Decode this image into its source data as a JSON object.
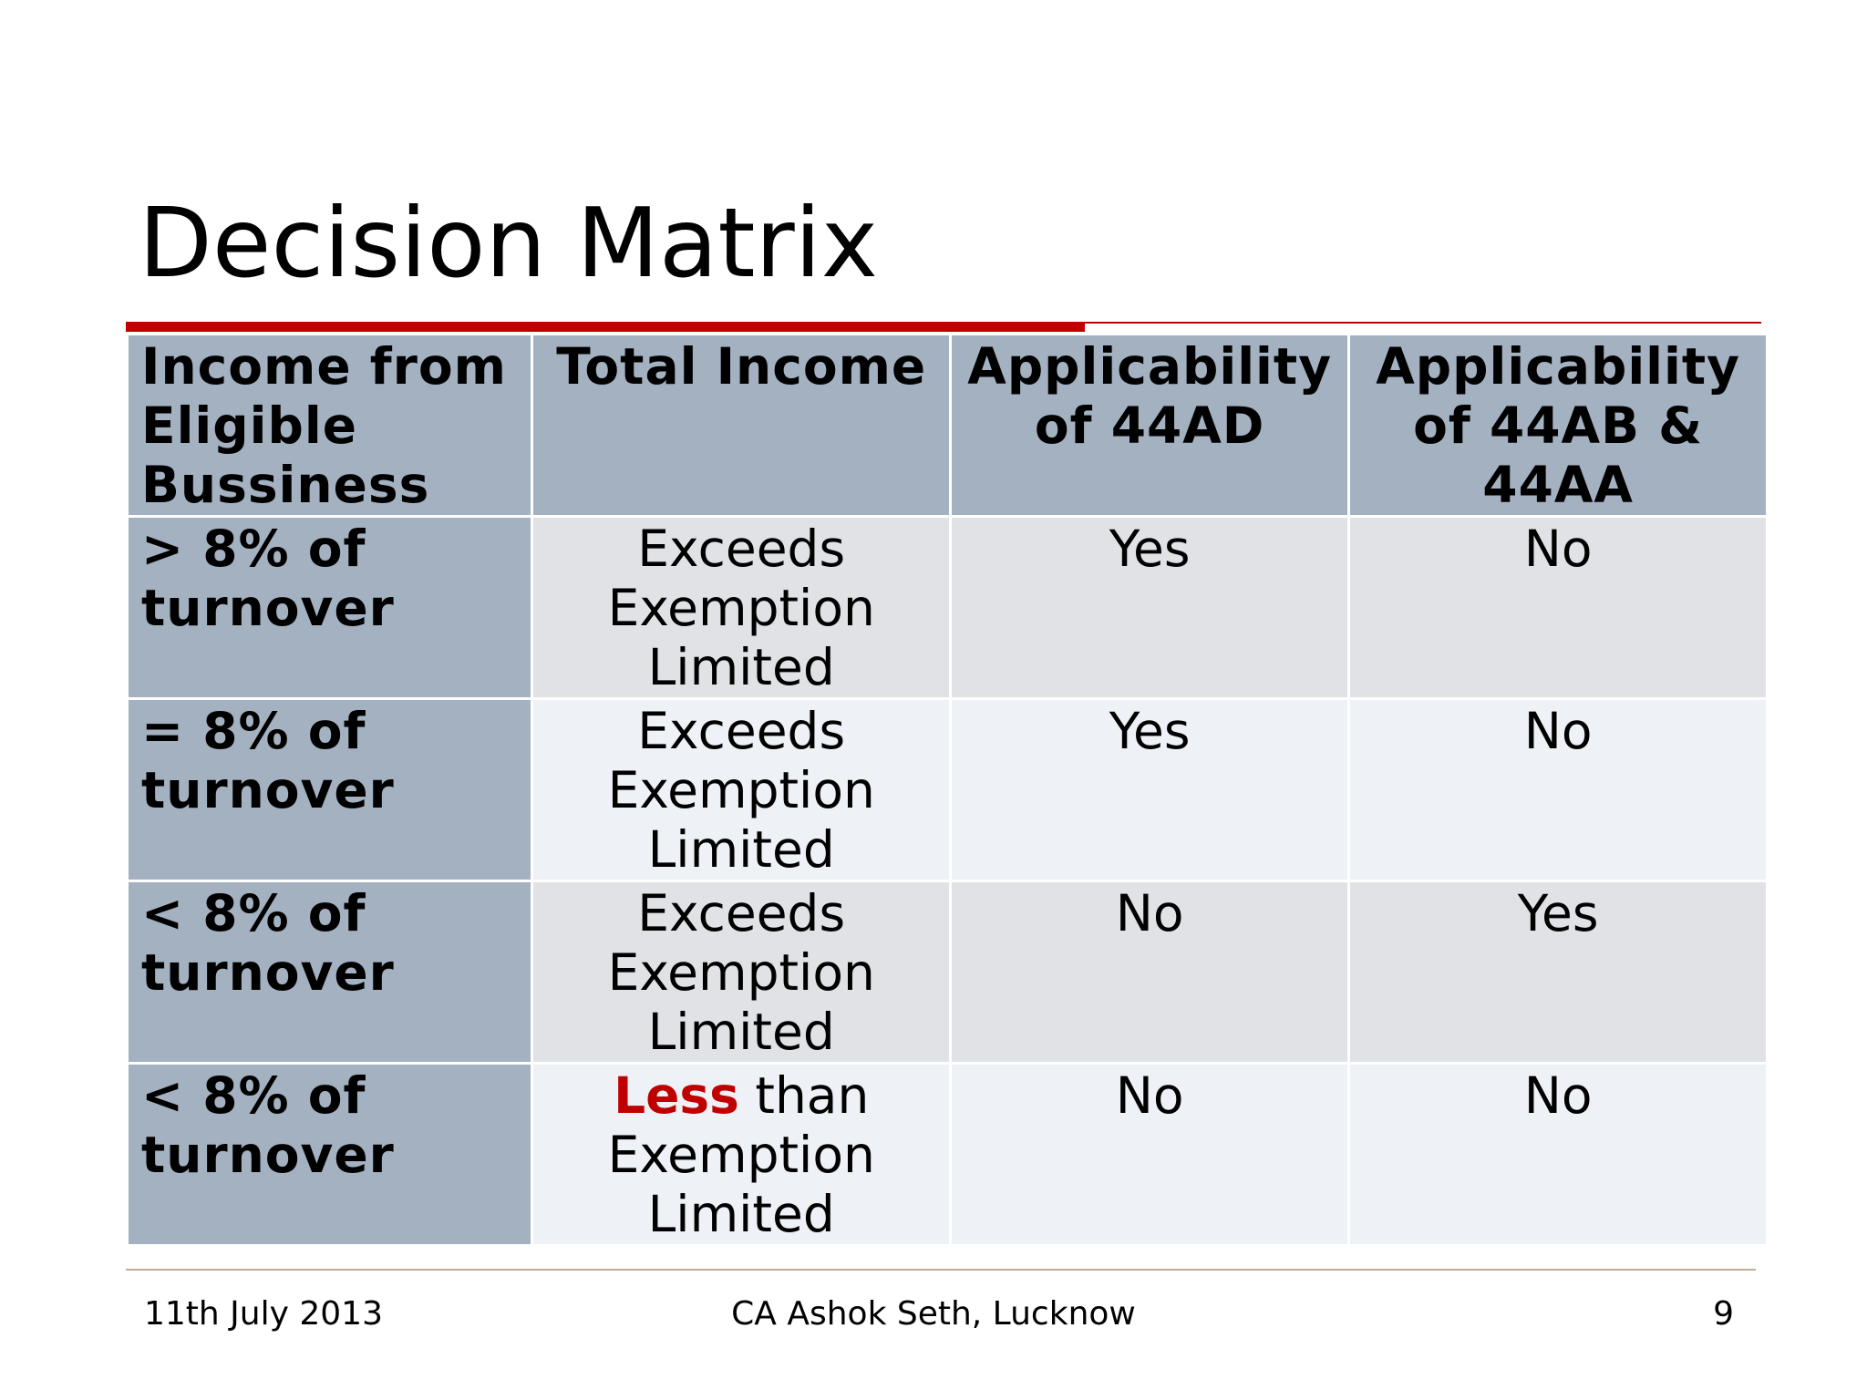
{
  "slide": {
    "title": "Decision Matrix"
  },
  "table": {
    "headers": [
      "Income from Eligible Bussiness",
      "Total Income",
      "Applicability of 44AD",
      "Applicability of 44AB & 44AA"
    ],
    "rows": [
      {
        "income": "> 8% of turnover",
        "total_income_emphasis": "",
        "total_income": "Exceeds Exemption Limited",
        "ad44": "Yes",
        "ab44": "No"
      },
      {
        "income": "= 8% of turnover",
        "total_income_emphasis": "",
        "total_income": "Exceeds Exemption Limited",
        "ad44": "Yes",
        "ab44": "No"
      },
      {
        "income": "< 8% of turnover",
        "total_income_emphasis": "",
        "total_income": "Exceeds Exemption Limited",
        "ad44": "No",
        "ab44": "Yes"
      },
      {
        "income": "< 8% of turnover",
        "total_income_emphasis": "Less",
        "total_income": " than Exemption Limited",
        "ad44": "No",
        "ab44": "No"
      }
    ]
  },
  "footer": {
    "date": "11th July 2013",
    "author": "CA Ashok Seth, Lucknow",
    "page_number": "9"
  },
  "colors": {
    "accent_red": "#c00000",
    "header_fill": "#a3b1c1",
    "row_odd_fill": "#e0e2e6",
    "row_even_fill": "#eef1f5"
  }
}
